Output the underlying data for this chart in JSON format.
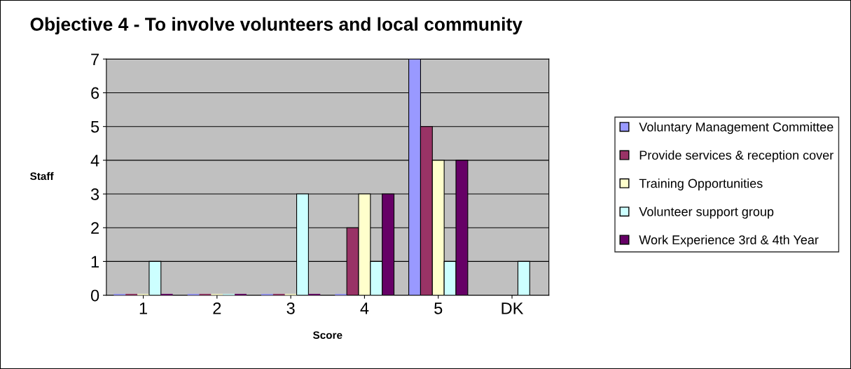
{
  "chart_data": {
    "type": "bar",
    "title": "Objective 4 - To involve volunteers and local community",
    "xlabel": "Score",
    "ylabel": "Staff",
    "categories": [
      "1",
      "2",
      "3",
      "4",
      "5",
      "DK"
    ],
    "series": [
      {
        "name": "Voluntary Management Committee",
        "color": "#9999ff",
        "values": [
          0,
          0,
          0,
          0,
          7,
          null
        ]
      },
      {
        "name": "Provide services & reception cover",
        "color": "#993366",
        "values": [
          0,
          0,
          0,
          2,
          5,
          null
        ]
      },
      {
        "name": "Training Opportunities",
        "color": "#ffffcc",
        "values": [
          0,
          0,
          0,
          3,
          4,
          null
        ]
      },
      {
        "name": "Volunteer support group",
        "color": "#ccffff",
        "values": [
          1,
          0,
          3,
          1,
          1,
          1
        ]
      },
      {
        "name": "Work Experience 3rd & 4th Year",
        "color": "#660066",
        "values": [
          0,
          0,
          0,
          3,
          4,
          null
        ]
      }
    ],
    "ylim": [
      0,
      7
    ],
    "yticks": [
      0,
      1,
      2,
      3,
      4,
      5,
      6,
      7
    ],
    "grid": "y",
    "legend": "right"
  }
}
